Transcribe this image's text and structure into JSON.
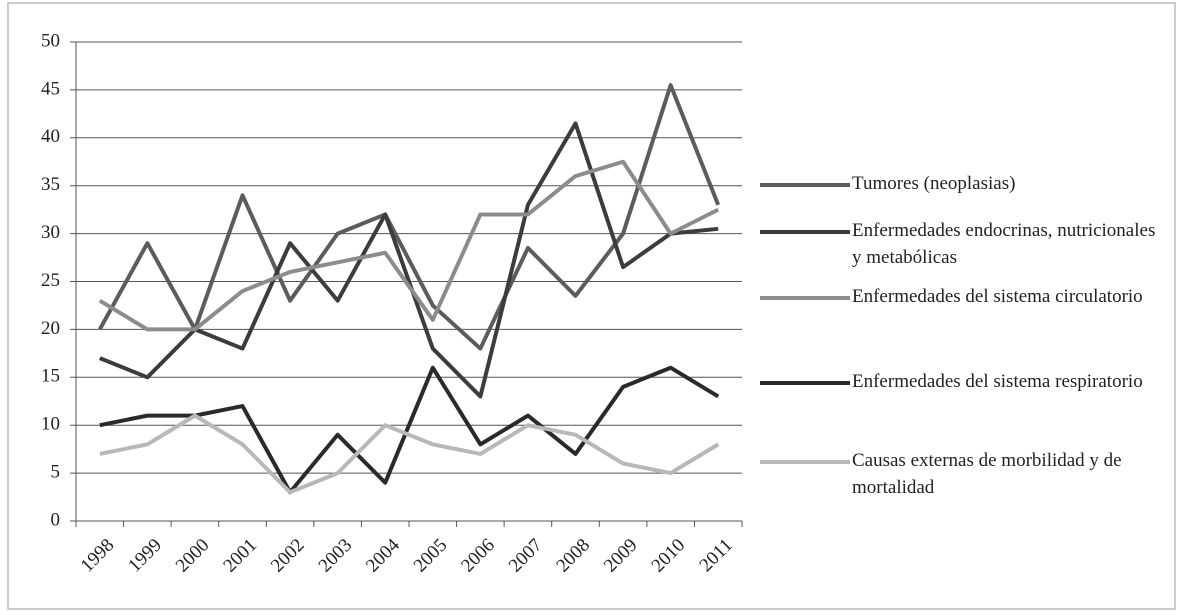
{
  "chart_data": {
    "type": "line",
    "categories": [
      "1998",
      "1999",
      "2000",
      "2001",
      "2002",
      "2003",
      "2004",
      "2005",
      "2006",
      "2007",
      "2008",
      "2009",
      "2010",
      "2011"
    ],
    "series": [
      {
        "name": "Tumores (neoplasias)",
        "color": "#5c5c5c",
        "values": [
          20,
          29,
          20,
          34,
          23,
          30,
          32,
          22.5,
          18,
          28.5,
          23.5,
          30,
          45.5,
          33
        ]
      },
      {
        "name": "Enfermedades endocrinas, nutricionales y metabólicas",
        "color": "#3c3c3c",
        "values": [
          17,
          15,
          20,
          18,
          29,
          23,
          32,
          18,
          13,
          33,
          41.5,
          26.5,
          30,
          30.5
        ]
      },
      {
        "name": "Enfermedades del sistema circulatorio",
        "color": "#8c8c8c",
        "values": [
          23,
          20,
          20,
          24,
          26,
          27,
          28,
          21,
          32,
          32,
          36,
          37.5,
          30,
          32.5
        ]
      },
      {
        "name": "Enfermedades del sistema respiratorio",
        "color": "#2a2a2a",
        "values": [
          10,
          11,
          11,
          12,
          3,
          9,
          4,
          16,
          8,
          11,
          7,
          14,
          16,
          13
        ]
      },
      {
        "name": "Causas externas de morbilidad y de mortalidad",
        "color": "#b8b8b8",
        "values": [
          7,
          8,
          11,
          8,
          3,
          5,
          10,
          8,
          7,
          10,
          9,
          6,
          5,
          8
        ]
      }
    ],
    "ylim": [
      0,
      50
    ],
    "yticks": [
      0,
      5,
      10,
      15,
      20,
      25,
      30,
      35,
      40,
      45,
      50
    ],
    "grid": true,
    "legend": "right"
  }
}
